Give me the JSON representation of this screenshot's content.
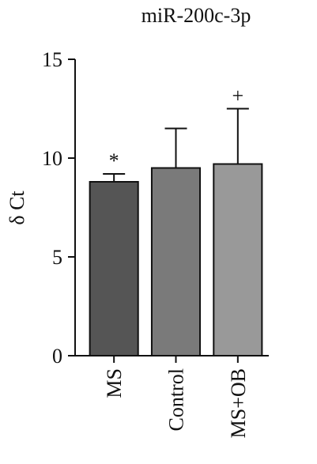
{
  "chart_data": {
    "type": "bar",
    "title": "miR-200c-3p",
    "y_label": "δ Ct",
    "categories": [
      "MS",
      "Control",
      "MS+OB"
    ],
    "values": [
      8.8,
      9.5,
      9.7
    ],
    "errors": [
      0.4,
      2.0,
      2.8
    ],
    "colors": [
      "#555555",
      "#7a7a7a",
      "#999999"
    ],
    "annotations": [
      "*",
      null,
      "+"
    ],
    "ylim": [
      0,
      15
    ],
    "yticks": [
      0,
      5,
      10,
      15
    ],
    "grid": false
  }
}
